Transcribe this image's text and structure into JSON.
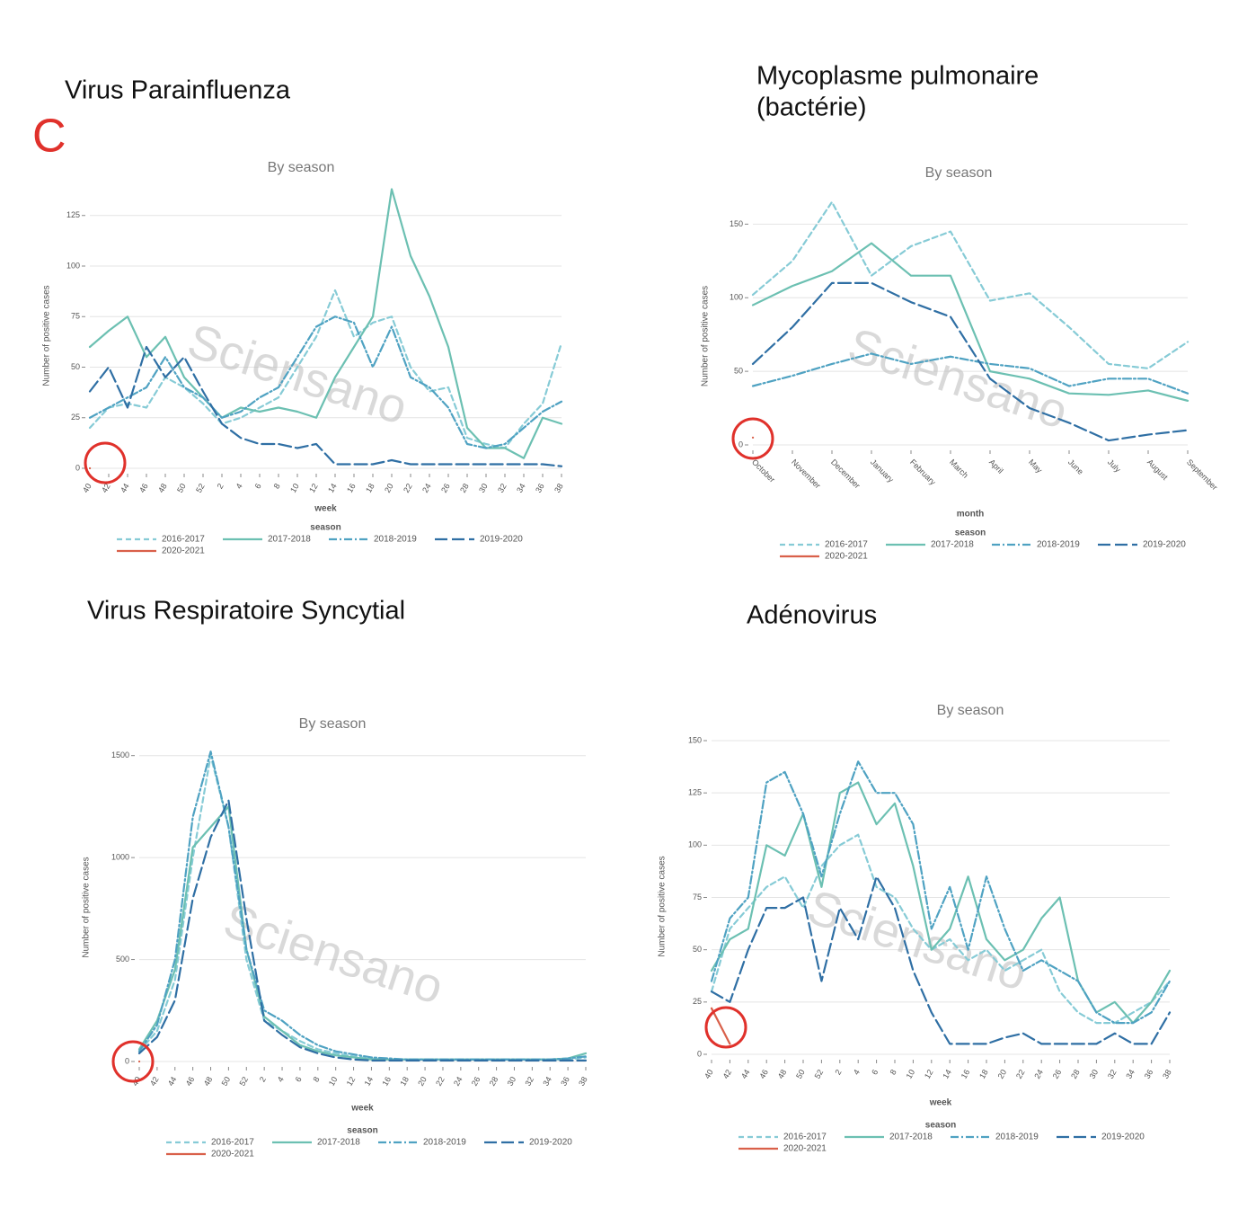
{
  "chart_data": [
    {
      "type": "line",
      "title": [
        "Virus Parainfluenza"
      ],
      "annotation": "C",
      "subtitle": "By season",
      "watermark": "Sciensano",
      "x_label": "week",
      "y_label": "Number of positive cases",
      "legend_title": "season",
      "categories": [
        "40",
        "42",
        "44",
        "46",
        "48",
        "50",
        "52",
        "2",
        "4",
        "6",
        "8",
        "10",
        "12",
        "14",
        "16",
        "18",
        "20",
        "22",
        "24",
        "26",
        "28",
        "30",
        "32",
        "34",
        "36",
        "38"
      ],
      "ylim": [
        0,
        140
      ],
      "yticks": [
        0,
        25,
        50,
        75,
        100,
        125
      ],
      "grid": true,
      "series": [
        {
          "name": "2016-2017",
          "color": "#86cbd6",
          "dash": "dashed",
          "values": [
            20,
            30,
            32,
            30,
            45,
            40,
            32,
            22,
            25,
            30,
            35,
            50,
            65,
            88,
            65,
            72,
            75,
            50,
            38,
            40,
            15,
            12,
            10,
            22,
            32,
            62
          ]
        },
        {
          "name": "2017-2018",
          "color": "#6cc0b2",
          "dash": "solid",
          "values": [
            60,
            68,
            75,
            55,
            65,
            45,
            35,
            25,
            30,
            28,
            30,
            28,
            25,
            45,
            60,
            75,
            138,
            105,
            85,
            60,
            20,
            10,
            10,
            5,
            25,
            22
          ]
        },
        {
          "name": "2018-2019",
          "color": "#4fa2c2",
          "dash": "dashdot",
          "values": [
            25,
            30,
            35,
            40,
            55,
            40,
            35,
            25,
            28,
            35,
            40,
            55,
            70,
            75,
            72,
            50,
            70,
            45,
            40,
            30,
            12,
            10,
            12,
            20,
            28,
            33
          ]
        },
        {
          "name": "2019-2020",
          "color": "#2f6fa4",
          "dash": "longdash",
          "values": [
            38,
            50,
            30,
            60,
            45,
            55,
            38,
            22,
            15,
            12,
            12,
            10,
            12,
            2,
            2,
            2,
            4,
            2,
            2,
            2,
            2,
            2,
            2,
            2,
            2,
            1
          ]
        },
        {
          "name": "2020-2021",
          "color": "#d9604a",
          "dash": "solid",
          "values": [
            0,
            null,
            null,
            null,
            null,
            null,
            null,
            null,
            null,
            null,
            null,
            null,
            null,
            null,
            null,
            null,
            null,
            null,
            null,
            null,
            null,
            null,
            null,
            null,
            null,
            null
          ]
        }
      ]
    },
    {
      "type": "line",
      "title": [
        "Mycoplasme pulmonaire",
        "(bactérie)"
      ],
      "subtitle": "By season",
      "watermark": "Sciensano",
      "x_label": "month",
      "y_label": "Number of positive cases",
      "legend_title": "season",
      "categories": [
        "October",
        "November",
        "December",
        "January",
        "February",
        "March",
        "April",
        "May",
        "June",
        "July",
        "August",
        "September"
      ],
      "ylim": [
        0,
        160
      ],
      "yticks": [
        0,
        50,
        100,
        150
      ],
      "grid": true,
      "series": [
        {
          "name": "2016-2017",
          "color": "#86cbd6",
          "dash": "dashed",
          "values": [
            102,
            125,
            165,
            115,
            135,
            145,
            98,
            103,
            80,
            55,
            52,
            70
          ]
        },
        {
          "name": "2017-2018",
          "color": "#6cc0b2",
          "dash": "solid",
          "values": [
            95,
            108,
            118,
            137,
            115,
            115,
            50,
            45,
            35,
            34,
            37,
            30
          ]
        },
        {
          "name": "2018-2019",
          "color": "#4fa2c2",
          "dash": "dashdot",
          "values": [
            40,
            47,
            55,
            62,
            55,
            60,
            55,
            52,
            40,
            45,
            45,
            35
          ]
        },
        {
          "name": "2019-2020",
          "color": "#2f6fa4",
          "dash": "longdash",
          "values": [
            55,
            80,
            110,
            110,
            97,
            87,
            45,
            25,
            15,
            3,
            7,
            10
          ]
        },
        {
          "name": "2020-2021",
          "color": "#d9604a",
          "dash": "solid",
          "values": [
            5,
            null,
            null,
            null,
            null,
            null,
            null,
            null,
            null,
            null,
            null,
            null
          ]
        }
      ]
    },
    {
      "type": "line",
      "title": [
        "Virus Respiratoire Syncytial"
      ],
      "subtitle": "By season",
      "watermark": "Sciensano",
      "x_label": "week",
      "y_label": "Number of positive cases",
      "legend_title": "season",
      "categories": [
        "40",
        "42",
        "44",
        "46",
        "48",
        "50",
        "52",
        "2",
        "4",
        "6",
        "8",
        "10",
        "12",
        "14",
        "16",
        "18",
        "20",
        "22",
        "24",
        "26",
        "28",
        "30",
        "32",
        "34",
        "36",
        "38"
      ],
      "ylim": [
        0,
        1600
      ],
      "yticks": [
        0,
        500,
        1000,
        1500
      ],
      "grid": true,
      "series": [
        {
          "name": "2016-2017",
          "color": "#86cbd6",
          "dash": "dashed",
          "values": [
            50,
            150,
            400,
            1000,
            1500,
            1150,
            500,
            200,
            150,
            100,
            60,
            40,
            25,
            15,
            10,
            10,
            10,
            10,
            10,
            10,
            10,
            10,
            10,
            10,
            10,
            20
          ]
        },
        {
          "name": "2017-2018",
          "color": "#6cc0b2",
          "dash": "solid",
          "values": [
            60,
            200,
            450,
            1050,
            1150,
            1250,
            550,
            220,
            150,
            80,
            50,
            30,
            20,
            10,
            10,
            10,
            10,
            10,
            10,
            10,
            10,
            10,
            10,
            10,
            15,
            40
          ]
        },
        {
          "name": "2018-2019",
          "color": "#4fa2c2",
          "dash": "dashdot",
          "values": [
            50,
            180,
            500,
            1200,
            1520,
            1150,
            550,
            250,
            200,
            130,
            80,
            50,
            35,
            20,
            15,
            10,
            10,
            10,
            10,
            10,
            10,
            10,
            10,
            10,
            15,
            25
          ]
        },
        {
          "name": "2019-2020",
          "color": "#2f6fa4",
          "dash": "longdash",
          "values": [
            40,
            120,
            300,
            800,
            1100,
            1280,
            700,
            200,
            130,
            70,
            40,
            20,
            10,
            5,
            5,
            5,
            5,
            5,
            5,
            5,
            5,
            5,
            5,
            5,
            5,
            5
          ]
        },
        {
          "name": "2020-2021",
          "color": "#d9604a",
          "dash": "solid",
          "values": [
            0,
            null,
            null,
            null,
            null,
            null,
            null,
            null,
            null,
            null,
            null,
            null,
            null,
            null,
            null,
            null,
            null,
            null,
            null,
            null,
            null,
            null,
            null,
            null,
            null,
            null
          ]
        }
      ]
    },
    {
      "type": "line",
      "title": [
        "Adénovirus"
      ],
      "subtitle": "By season",
      "watermark": "Sciensano",
      "x_label": "week",
      "y_label": "Number of positive cases",
      "legend_title": "season",
      "categories": [
        "40",
        "42",
        "44",
        "46",
        "48",
        "50",
        "52",
        "2",
        "4",
        "6",
        "8",
        "10",
        "12",
        "14",
        "16",
        "18",
        "20",
        "22",
        "24",
        "26",
        "28",
        "30",
        "32",
        "34",
        "36",
        "38"
      ],
      "ylim": [
        0,
        150
      ],
      "yticks": [
        0,
        25,
        50,
        75,
        100,
        125,
        150
      ],
      "grid": true,
      "series": [
        {
          "name": "2016-2017",
          "color": "#86cbd6",
          "dash": "dashed",
          "values": [
            30,
            60,
            70,
            80,
            85,
            70,
            90,
            100,
            105,
            80,
            75,
            60,
            50,
            55,
            45,
            50,
            40,
            45,
            50,
            30,
            20,
            15,
            15,
            20,
            25,
            35
          ]
        },
        {
          "name": "2017-2018",
          "color": "#6cc0b2",
          "dash": "solid",
          "values": [
            40,
            55,
            60,
            100,
            95,
            115,
            80,
            125,
            130,
            110,
            120,
            90,
            50,
            60,
            85,
            55,
            45,
            50,
            65,
            75,
            35,
            20,
            25,
            15,
            25,
            40
          ]
        },
        {
          "name": "2018-2019",
          "color": "#4fa2c2",
          "dash": "dashdot",
          "values": [
            35,
            65,
            75,
            130,
            135,
            115,
            85,
            115,
            140,
            125,
            125,
            110,
            60,
            80,
            50,
            85,
            60,
            40,
            45,
            40,
            35,
            20,
            15,
            15,
            20,
            35
          ]
        },
        {
          "name": "2019-2020",
          "color": "#2f6fa4",
          "dash": "longdash",
          "values": [
            30,
            25,
            50,
            70,
            70,
            75,
            35,
            70,
            55,
            85,
            70,
            40,
            20,
            5,
            5,
            5,
            8,
            10,
            5,
            5,
            5,
            5,
            10,
            5,
            5,
            20
          ]
        },
        {
          "name": "2020-2021",
          "color": "#d9604a",
          "dash": "solid",
          "values": [
            22,
            5,
            null,
            null,
            null,
            null,
            null,
            null,
            null,
            null,
            null,
            null,
            null,
            null,
            null,
            null,
            null,
            null,
            null,
            null,
            null,
            null,
            null,
            null,
            null,
            null
          ]
        }
      ]
    }
  ]
}
